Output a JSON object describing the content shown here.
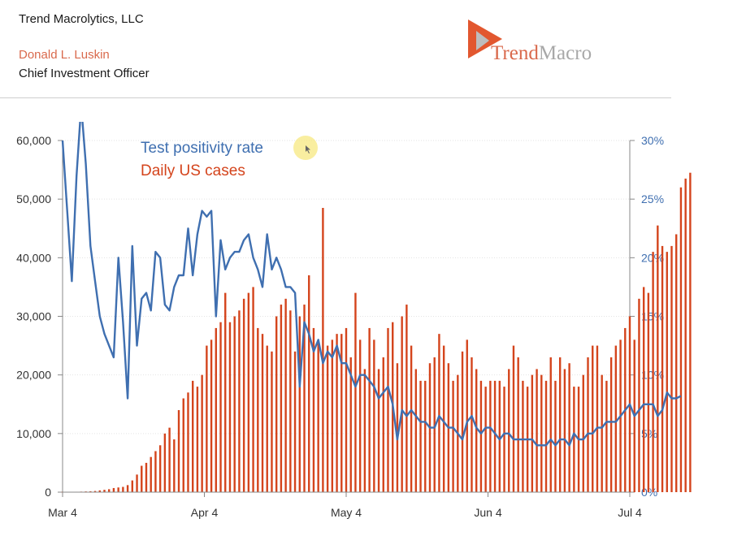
{
  "header": {
    "company": "Trend Macrolytics, LLC",
    "person": "Donald L. Luskin",
    "role": "Chief Investment Officer",
    "logo": {
      "word1": "Trend",
      "word2": "Macro"
    }
  },
  "colors": {
    "cases": "#d4441c",
    "positivity": "#3f6fb0",
    "axis": "#555555"
  },
  "chart_data": {
    "type": "bar",
    "title": "",
    "xlabel": "",
    "ylabel": "",
    "x_ticks": [
      "Mar 4",
      "Apr 4",
      "May 4",
      "Jun 4",
      "Jul 4"
    ],
    "x_range": [
      "2020-03-04",
      "2020-07-04"
    ],
    "y_left": {
      "lim": [
        0,
        60000
      ],
      "ticks": [
        "0",
        "10,000",
        "20,000",
        "30,000",
        "40,000",
        "50,000",
        "60,000"
      ]
    },
    "y_right": {
      "lim": [
        0,
        30
      ],
      "ticks": [
        "0%",
        "5%",
        "10%",
        "15%",
        "20%",
        "25%",
        "30%"
      ]
    },
    "legend": {
      "position": "top-left",
      "items": [
        "Test positivity rate",
        "Daily US cases"
      ]
    },
    "series": [
      {
        "name": "Daily US cases",
        "type": "bar",
        "axis": "left",
        "start_date": "2020-03-04",
        "values": [
          30,
          40,
          60,
          70,
          90,
          120,
          150,
          200,
          300,
          400,
          500,
          700,
          800,
          900,
          1200,
          2000,
          3000,
          4500,
          5000,
          6000,
          7000,
          8000,
          10000,
          11000,
          9000,
          14000,
          16000,
          17000,
          19000,
          18000,
          20000,
          25000,
          26000,
          28000,
          29000,
          34000,
          29000,
          30000,
          31000,
          33000,
          34000,
          35000,
          28000,
          27000,
          25000,
          24000,
          30000,
          32000,
          33000,
          31000,
          24000,
          30000,
          32000,
          37000,
          28000,
          26000,
          48500,
          25000,
          26000,
          27000,
          27000,
          28000,
          23000,
          34000,
          26000,
          21000,
          28000,
          26000,
          21000,
          23000,
          28000,
          29000,
          22000,
          30000,
          32000,
          25000,
          21000,
          19000,
          19000,
          22000,
          23000,
          27000,
          25000,
          22000,
          19000,
          20000,
          24000,
          26000,
          23000,
          21000,
          19000,
          18000,
          19000,
          19000,
          19000,
          18000,
          21000,
          25000,
          23000,
          19000,
          18000,
          20000,
          21000,
          20000,
          19000,
          23000,
          19000,
          23000,
          21000,
          22000,
          18000,
          18000,
          20000,
          23000,
          25000,
          25000,
          20000,
          19000,
          23000,
          25000,
          26000,
          28000,
          30000,
          26000,
          33000,
          35000,
          34000,
          41000,
          45500,
          42000,
          41000,
          42000,
          44000,
          52000,
          53500,
          54500
        ]
      },
      {
        "name": "Test positivity rate",
        "type": "line",
        "axis": "right",
        "start_date": "2020-03-04",
        "values": [
          30,
          24,
          18,
          27,
          33,
          28,
          21,
          18,
          15,
          13.5,
          12.5,
          11.5,
          20,
          14.5,
          8,
          21,
          12.5,
          16.5,
          17,
          15.5,
          20.5,
          20,
          16,
          15.5,
          17.5,
          18.5,
          18.5,
          22.5,
          18.5,
          22,
          24,
          23.5,
          24,
          15,
          21.5,
          19,
          20,
          20.5,
          20.5,
          21.5,
          22,
          20,
          19,
          17.5,
          22,
          19,
          20,
          19,
          17.5,
          17.5,
          17,
          9,
          14.5,
          13.5,
          12,
          13,
          11,
          12,
          11.5,
          12.5,
          11,
          11,
          10,
          9,
          10,
          10,
          9.5,
          9,
          8,
          8.5,
          9,
          7.5,
          4.5,
          7,
          6.5,
          7,
          6.5,
          6,
          6,
          5.5,
          5.5,
          6.5,
          6,
          5.5,
          5.5,
          5,
          4.5,
          6,
          6.5,
          5.5,
          5,
          5.5,
          5.5,
          5,
          4.5,
          5,
          5,
          4.5,
          4.5,
          4.5,
          4.5,
          4.5,
          4,
          4,
          4,
          4.5,
          4,
          4.5,
          4.5,
          4,
          5,
          4.5,
          4.5,
          5,
          5,
          5.5,
          5.5,
          6,
          6,
          6,
          6.5,
          7,
          7.5,
          6.5,
          7,
          7.5,
          7.5,
          7.5,
          6.5,
          7,
          8.5,
          8,
          8,
          8.2
        ]
      }
    ]
  }
}
